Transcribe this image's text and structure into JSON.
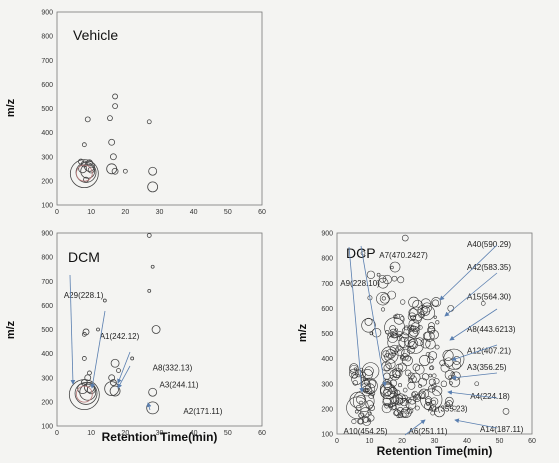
{
  "chart_data": [
    {
      "type": "scatter",
      "title": "Vehicle",
      "xlabel": "",
      "ylabel": "m/z",
      "xlim": [
        0,
        60
      ],
      "ylim": [
        100,
        900
      ],
      "xticks": [
        "0",
        "10",
        "20",
        "30",
        "40",
        "50",
        "60"
      ],
      "yticks": [
        "100",
        "200",
        "300",
        "400",
        "500",
        "600",
        "700",
        "800",
        "900"
      ],
      "points": [
        {
          "x": 8,
          "y": 230,
          "r": 14
        },
        {
          "x": 8.5,
          "y": 235,
          "r": 10
        },
        {
          "x": 9,
          "y": 240,
          "r": 7
        },
        {
          "x": 7.5,
          "y": 250,
          "r": 4
        },
        {
          "x": 9.5,
          "y": 260,
          "r": 5
        },
        {
          "x": 10,
          "y": 245,
          "r": 3
        },
        {
          "x": 8,
          "y": 270,
          "r": 3
        },
        {
          "x": 9.5,
          "y": 275,
          "r": 3
        },
        {
          "x": 7,
          "y": 280,
          "r": 2.5
        },
        {
          "x": 8.5,
          "y": 205,
          "r": 2.5
        },
        {
          "x": 9,
          "y": 455,
          "r": 2.5
        },
        {
          "x": 8,
          "y": 350,
          "r": 2
        },
        {
          "x": 16,
          "y": 250,
          "r": 5
        },
        {
          "x": 17,
          "y": 240,
          "r": 3
        },
        {
          "x": 16.5,
          "y": 300,
          "r": 3
        },
        {
          "x": 16,
          "y": 360,
          "r": 3
        },
        {
          "x": 17,
          "y": 510,
          "r": 2.5
        },
        {
          "x": 17,
          "y": 550,
          "r": 2.5
        },
        {
          "x": 15.5,
          "y": 460,
          "r": 2.5
        },
        {
          "x": 20,
          "y": 240,
          "r": 2
        },
        {
          "x": 28,
          "y": 175,
          "r": 5
        },
        {
          "x": 28,
          "y": 240,
          "r": 4
        },
        {
          "x": 27,
          "y": 445,
          "r": 2
        }
      ]
    },
    {
      "type": "scatter",
      "title": "DCM",
      "xlabel": "Retention Time(min)",
      "ylabel": "m/z",
      "xlim": [
        0,
        60
      ],
      "ylim": [
        100,
        900
      ],
      "xticks": [
        "0",
        "10",
        "20",
        "30",
        "40",
        "50",
        "60"
      ],
      "yticks": [
        "100",
        "200",
        "300",
        "400",
        "500",
        "600",
        "700",
        "800",
        "900"
      ],
      "points": [
        {
          "x": 8,
          "y": 230,
          "r": 15
        },
        {
          "x": 8.5,
          "y": 235,
          "r": 11
        },
        {
          "x": 9,
          "y": 240,
          "r": 8
        },
        {
          "x": 7.5,
          "y": 255,
          "r": 5
        },
        {
          "x": 9.5,
          "y": 260,
          "r": 5
        },
        {
          "x": 10,
          "y": 250,
          "r": 4
        },
        {
          "x": 8,
          "y": 280,
          "r": 3
        },
        {
          "x": 9,
          "y": 300,
          "r": 3
        },
        {
          "x": 8.5,
          "y": 490,
          "r": 3
        },
        {
          "x": 8,
          "y": 480,
          "r": 2
        },
        {
          "x": 8,
          "y": 380,
          "r": 2
        },
        {
          "x": 9.5,
          "y": 320,
          "r": 2
        },
        {
          "x": 16,
          "y": 255,
          "r": 7
        },
        {
          "x": 17,
          "y": 245,
          "r": 5
        },
        {
          "x": 17,
          "y": 360,
          "r": 4
        },
        {
          "x": 16,
          "y": 300,
          "r": 3
        },
        {
          "x": 18,
          "y": 330,
          "r": 2
        },
        {
          "x": 16.5,
          "y": 280,
          "r": 3
        },
        {
          "x": 29,
          "y": 500,
          "r": 4
        },
        {
          "x": 28,
          "y": 175,
          "r": 6
        },
        {
          "x": 28,
          "y": 240,
          "r": 4
        },
        {
          "x": 27,
          "y": 890,
          "r": 2
        },
        {
          "x": 28,
          "y": 760,
          "r": 1.5
        },
        {
          "x": 27,
          "y": 660,
          "r": 1.5
        },
        {
          "x": 14,
          "y": 620,
          "r": 1.5
        },
        {
          "x": 12,
          "y": 500,
          "r": 1.5
        },
        {
          "x": 22,
          "y": 380,
          "r": 1.5
        }
      ],
      "annotations": [
        {
          "text": "A29(228.1)",
          "x": 2,
          "y": 630
        },
        {
          "text": "A1(242.12)",
          "x": 12.5,
          "y": 460
        },
        {
          "text": "A8(332.13)",
          "x": 28,
          "y": 330
        },
        {
          "text": "A3(244.11)",
          "x": 30,
          "y": 260
        },
        {
          "text": "A2(171.11)",
          "x": 37,
          "y": 150
        }
      ]
    },
    {
      "type": "scatter",
      "title": "DCP",
      "xlabel": "Retention Time(min)",
      "ylabel": "m/z",
      "xlim": [
        0,
        60
      ],
      "ylim": [
        100,
        900
      ],
      "xticks": [
        "0",
        "10",
        "20",
        "30",
        "40",
        "50",
        "60"
      ],
      "yticks": [
        "100",
        "200",
        "300",
        "400",
        "500",
        "600",
        "700",
        "800",
        "900"
      ],
      "annotations": [
        {
          "text": "A7(470.2427)",
          "x": 13,
          "y": 800
        },
        {
          "text": "A9(228.10)",
          "x": 1,
          "y": 690
        },
        {
          "text": "A40(590.29)",
          "x": 40,
          "y": 845
        },
        {
          "text": "A42(583.35)",
          "x": 40,
          "y": 752
        },
        {
          "text": "A15(564.30)",
          "x": 40,
          "y": 635
        },
        {
          "text": "A8(443.6213)",
          "x": 40,
          "y": 505
        },
        {
          "text": "A12(407.21)",
          "x": 40,
          "y": 420
        },
        {
          "text": "A3(356.25)",
          "x": 40,
          "y": 355
        },
        {
          "text": "A4(224.18)",
          "x": 41,
          "y": 240
        },
        {
          "text": "A1(355.23)",
          "x": 28,
          "y": 190
        },
        {
          "text": "A14(187.11)",
          "x": 44,
          "y": 108
        },
        {
          "text": "A10(454.25)",
          "x": 2,
          "y": 100
        },
        {
          "text": "A6(251.11)",
          "x": 22,
          "y": 100
        }
      ]
    }
  ]
}
